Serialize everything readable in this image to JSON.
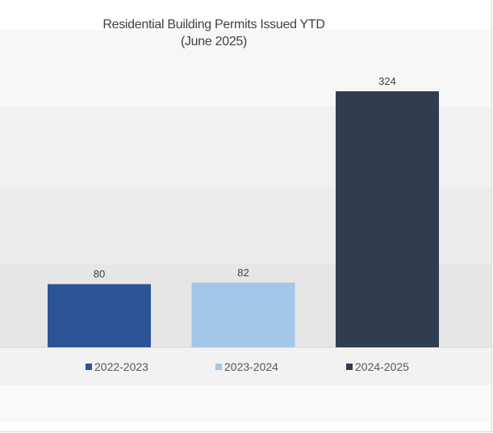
{
  "chart_data": {
    "type": "bar",
    "title": "Residential Building Permits Issued YTD",
    "subtitle": "(June 2025)",
    "categories": [
      "2022-2023",
      "2023-2024",
      "2024-2025"
    ],
    "values": [
      80,
      82,
      324
    ],
    "colors": [
      "#2c5597",
      "#a2c7e9",
      "#2e3e4e"
    ],
    "ylim": [
      0,
      324
    ],
    "grid": false,
    "legend_position": "bottom"
  }
}
